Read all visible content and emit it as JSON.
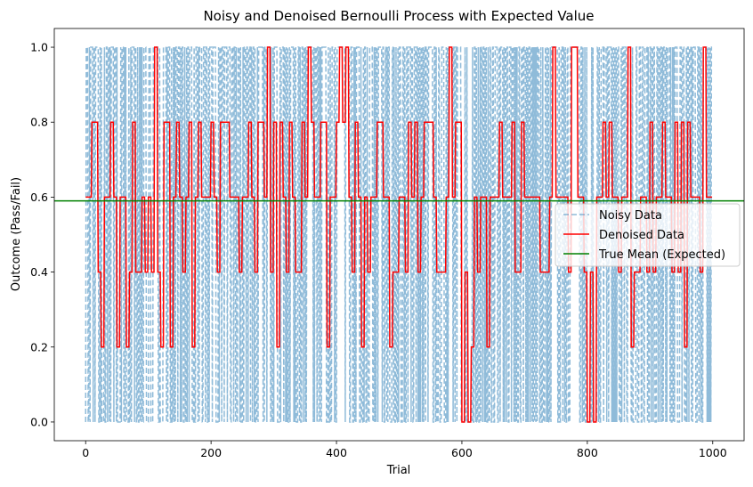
{
  "chart_data": {
    "type": "line",
    "title": "Noisy and Denoised Bernoulli Process with Expected Value",
    "xlabel": "Trial",
    "ylabel": "Outcome (Pass/Fail)",
    "xlim": [
      -50,
      1050
    ],
    "ylim": [
      -0.05,
      1.05
    ],
    "x_ticks": [
      0,
      200,
      400,
      600,
      800,
      1000
    ],
    "x_tick_labels": [
      "0",
      "200",
      "400",
      "600",
      "800",
      "1000"
    ],
    "y_ticks": [
      0.0,
      0.2,
      0.4,
      0.6,
      0.8,
      1.0
    ],
    "y_tick_labels": [
      "0.0",
      "0.2",
      "0.4",
      "0.6",
      "0.8",
      "1.0"
    ],
    "grid": false,
    "legend_position": "center-right",
    "n_trials": 1000,
    "series": [
      {
        "name": "Noisy Data",
        "style": "dashed",
        "color": "#1f77b4",
        "alpha": 0.5,
        "description": "Bernoulli outcomes (0 or 1) for each trial, p approximately 0.59"
      },
      {
        "name": "Denoised Data",
        "style": "solid",
        "color": "#ff0000",
        "description": "5-trial block mean of the noisy data, values in {0, 0.2, 0.4, 0.6, 0.8, 1.0}"
      },
      {
        "name": "True Mean (Expected)",
        "style": "solid",
        "color": "#008000",
        "value": 0.59,
        "description": "Horizontal line at the expected value"
      }
    ]
  }
}
